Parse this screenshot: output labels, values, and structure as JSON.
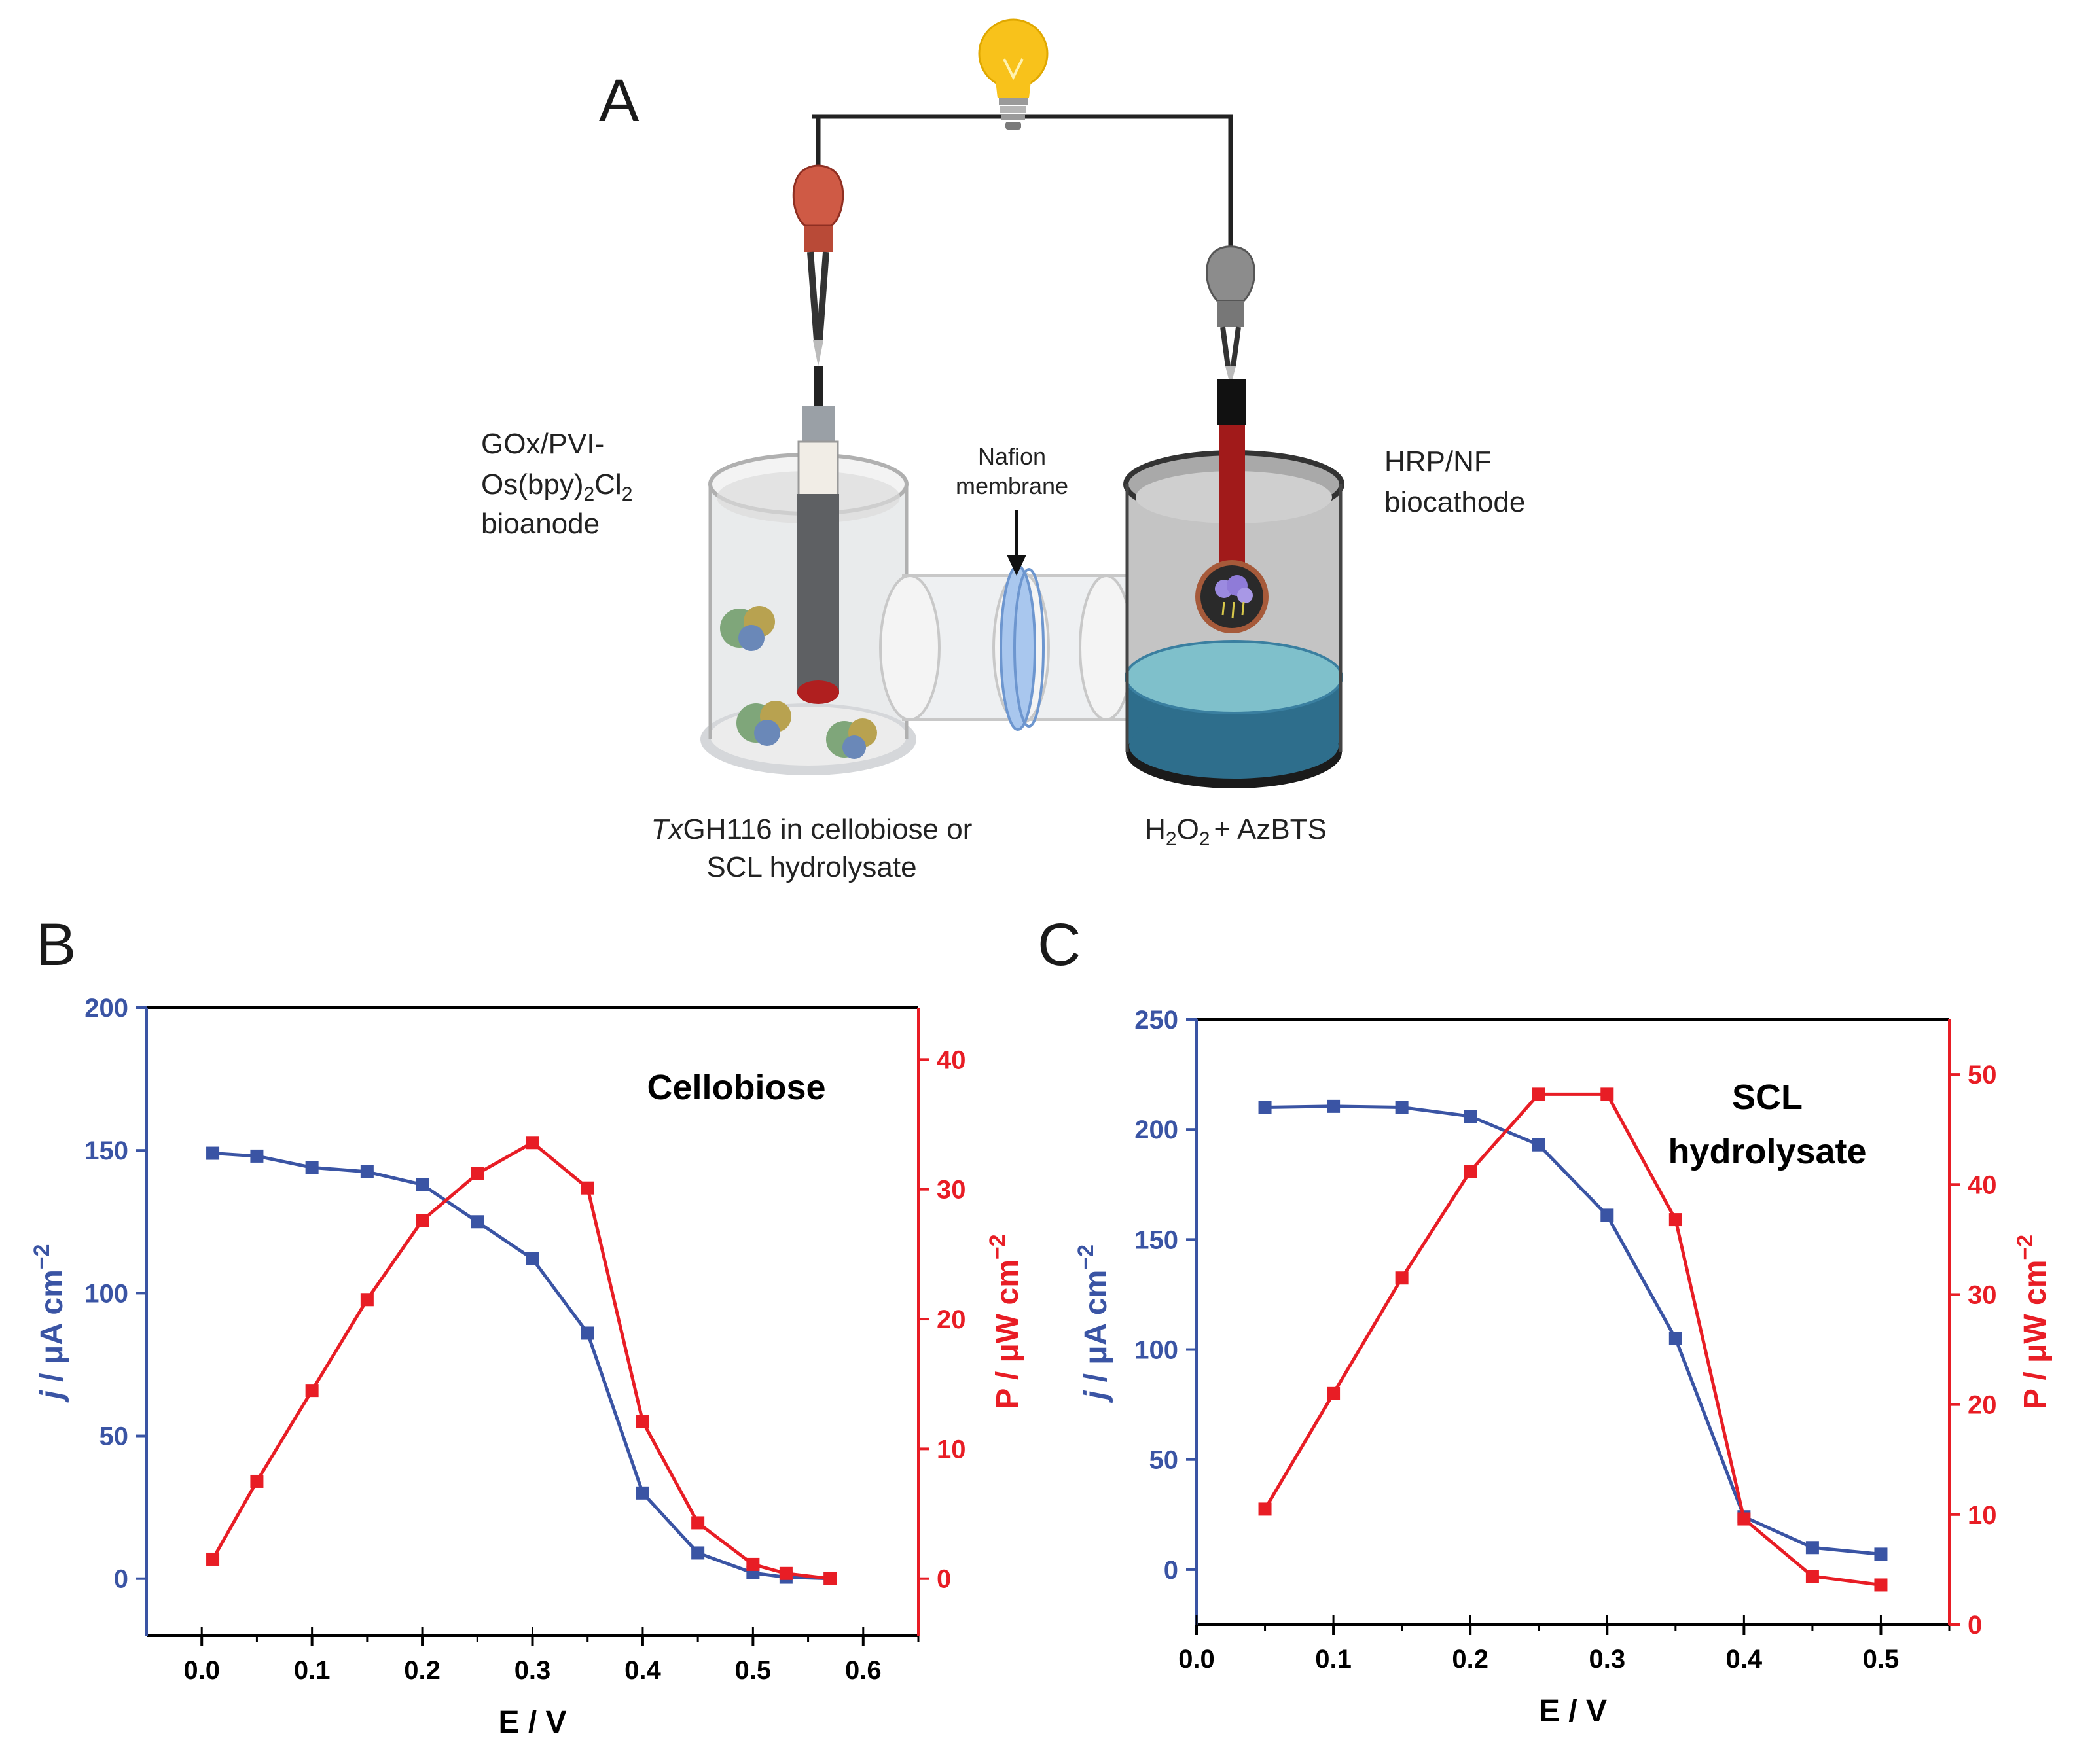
{
  "colors": {
    "blue": "#3a54a4",
    "red": "#e81d25",
    "wire": "#222222"
  },
  "panel_letters": {
    "a": "A",
    "b": "B",
    "c": "C"
  },
  "diagram": {
    "bioanode_line1": "GOx/PVI-",
    "bioanode_line2_pre": "Os(bpy)",
    "bioanode_line2_sub1": "2",
    "bioanode_line2_mid": "Cl",
    "bioanode_line2_sub2": "2",
    "bioanode_line3": "bioanode",
    "nafion_line1": "Nafion",
    "nafion_line2": "membrane",
    "biocathode_line1": "HRP/NF",
    "biocathode_line2": "biocathode",
    "anode_solution_italic": "Tx",
    "anode_solution_rest": "GH116 in cellobiose or",
    "anode_solution_line2": "SCL hydrolysate",
    "cathode_solution_h": "H",
    "cathode_solution_sub1": "2",
    "cathode_solution_o": "O",
    "cathode_solution_sub2": "2",
    "cathode_solution_rest": "+ AzBTS",
    "bulb_icon": "lightbulb-icon",
    "enzyme_icon": "enzyme-protein-icon"
  },
  "chart_data": [
    {
      "type": "line",
      "panel": "B",
      "title": "Cellobiose",
      "xlabel": "E / V",
      "ylabel_left_italic": "j",
      "ylabel_left_rest": " / μA cm",
      "ylabel_left_sup": "−2",
      "ylabel_right": "P / μW cm",
      "ylabel_right_sup": "−2",
      "xlim": [
        -0.05,
        0.65
      ],
      "ylim_left": [
        -20,
        200
      ],
      "ylim_right": [
        -4.4,
        44
      ],
      "xticks": [
        "0.0",
        "0.1",
        "0.2",
        "0.3",
        "0.4",
        "0.5",
        "0.6"
      ],
      "yticks_left": [
        "0",
        "50",
        "100",
        "150",
        "200"
      ],
      "yticks_right": [
        "0",
        "10",
        "20",
        "30",
        "40"
      ],
      "series": [
        {
          "name": "j",
          "axis": "left",
          "color": "#3a54a4",
          "x": [
            0.01,
            0.05,
            0.1,
            0.15,
            0.2,
            0.25,
            0.3,
            0.35,
            0.4,
            0.45,
            0.5,
            0.53,
            0.57
          ],
          "y": [
            149,
            148,
            144,
            142.5,
            138,
            125,
            112,
            86,
            30,
            9,
            2,
            0.5,
            0
          ]
        },
        {
          "name": "P",
          "axis": "right",
          "color": "#e81d25",
          "x": [
            0.01,
            0.05,
            0.1,
            0.15,
            0.2,
            0.25,
            0.3,
            0.35,
            0.4,
            0.45,
            0.5,
            0.53,
            0.57
          ],
          "y": [
            1.5,
            7.5,
            14.5,
            21.5,
            27.6,
            31.2,
            33.6,
            30.1,
            12.1,
            4.3,
            1.1,
            0.4,
            0.0
          ]
        }
      ]
    },
    {
      "type": "line",
      "panel": "C",
      "title_line1": "SCL",
      "title_line2": "hydrolysate",
      "xlabel": "E / V",
      "ylabel_left_italic": "j",
      "ylabel_left_rest": " / μA cm",
      "ylabel_left_sup": "−2",
      "ylabel_right": "P / μW cm",
      "ylabel_right_sup": "−2",
      "xlim": [
        0.0,
        0.55
      ],
      "ylim_left": [
        -25,
        250
      ],
      "ylim_right": [
        0,
        55
      ],
      "xticks": [
        "0.0",
        "0.1",
        "0.2",
        "0.3",
        "0.4",
        "0.5"
      ],
      "yticks_left": [
        "0",
        "50",
        "100",
        "150",
        "200",
        "250"
      ],
      "yticks_right": [
        "0",
        "10",
        "20",
        "30",
        "40",
        "50"
      ],
      "series": [
        {
          "name": "j",
          "axis": "left",
          "color": "#3a54a4",
          "x": [
            0.05,
            0.1,
            0.15,
            0.2,
            0.25,
            0.3,
            0.35,
            0.4,
            0.45,
            0.5
          ],
          "y": [
            210,
            210.5,
            210,
            206,
            193,
            161,
            105,
            24,
            10,
            7
          ]
        },
        {
          "name": "P",
          "axis": "right",
          "color": "#e81d25",
          "x": [
            0.05,
            0.1,
            0.15,
            0.2,
            0.25,
            0.3,
            0.35,
            0.4,
            0.45,
            0.5
          ],
          "y": [
            10.5,
            21,
            31.5,
            41.2,
            48.2,
            48.2,
            36.8,
            9.6,
            4.4,
            3.6
          ]
        }
      ]
    }
  ]
}
